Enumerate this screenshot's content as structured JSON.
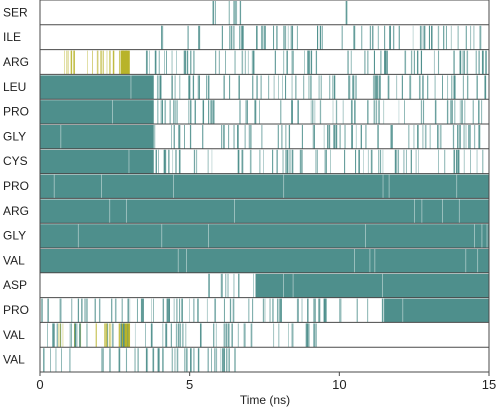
{
  "chart_data": {
    "type": "heatmap",
    "title": "",
    "xlabel": "Time (ns)",
    "ylabel": "",
    "xlim": [
      0,
      15
    ],
    "x_ticks": [
      0,
      5,
      10,
      15
    ],
    "rows": [
      {
        "label": "SER",
        "events": [
          {
            "start": 5.6,
            "end": 6.7,
            "state": "contact",
            "pattern": "sparse"
          },
          {
            "start": 10.2,
            "end": 10.3,
            "state": "contact",
            "pattern": "sparse"
          }
        ]
      },
      {
        "label": "ILE",
        "events": [
          {
            "start": 4.0,
            "end": 15.0,
            "state": "contact",
            "pattern": "sparse"
          }
        ]
      },
      {
        "label": "ARG",
        "events": [
          {
            "start": 0.3,
            "end": 2.9,
            "state": "hbond",
            "pattern": "sparse"
          },
          {
            "start": 2.7,
            "end": 3.0,
            "state": "hbond",
            "pattern": "dense"
          },
          {
            "start": 3.5,
            "end": 15.0,
            "state": "contact",
            "pattern": "sparse"
          }
        ]
      },
      {
        "label": "LEU",
        "events": [
          {
            "start": 0.0,
            "end": 3.8,
            "state": "contact",
            "pattern": "dense"
          },
          {
            "start": 3.8,
            "end": 15.0,
            "state": "contact",
            "pattern": "sparse"
          }
        ]
      },
      {
        "label": "PRO",
        "events": [
          {
            "start": 0.0,
            "end": 3.8,
            "state": "contact",
            "pattern": "dense"
          },
          {
            "start": 3.8,
            "end": 15.0,
            "state": "contact",
            "pattern": "sparse"
          }
        ]
      },
      {
        "label": "GLY",
        "events": [
          {
            "start": 0.0,
            "end": 3.8,
            "state": "contact",
            "pattern": "dense"
          },
          {
            "start": 3.8,
            "end": 15.0,
            "state": "contact",
            "pattern": "sparse"
          }
        ]
      },
      {
        "label": "CYS",
        "events": [
          {
            "start": 0.0,
            "end": 3.8,
            "state": "contact",
            "pattern": "dense"
          },
          {
            "start": 3.8,
            "end": 15.0,
            "state": "contact",
            "pattern": "sparse"
          }
        ]
      },
      {
        "label": "PRO",
        "events": [
          {
            "start": 0.0,
            "end": 15.0,
            "state": "contact",
            "pattern": "dense"
          }
        ]
      },
      {
        "label": "ARG",
        "events": [
          {
            "start": 0.0,
            "end": 15.0,
            "state": "contact",
            "pattern": "dense"
          }
        ]
      },
      {
        "label": "GLY",
        "events": [
          {
            "start": 0.0,
            "end": 15.0,
            "state": "contact",
            "pattern": "dense"
          }
        ]
      },
      {
        "label": "VAL",
        "events": [
          {
            "start": 0.0,
            "end": 15.0,
            "state": "contact",
            "pattern": "dense"
          }
        ]
      },
      {
        "label": "ASP",
        "events": [
          {
            "start": 7.2,
            "end": 15.0,
            "state": "contact",
            "pattern": "dense"
          },
          {
            "start": 5.5,
            "end": 7.2,
            "state": "contact",
            "pattern": "sparse"
          }
        ]
      },
      {
        "label": "PRO",
        "events": [
          {
            "start": 11.5,
            "end": 15.0,
            "state": "contact",
            "pattern": "dense"
          },
          {
            "start": 0.0,
            "end": 11.5,
            "state": "contact",
            "pattern": "sparse"
          }
        ]
      },
      {
        "label": "VAL",
        "events": [
          {
            "start": 0.3,
            "end": 3.0,
            "state": "hbond",
            "pattern": "sparse"
          },
          {
            "start": 2.7,
            "end": 3.0,
            "state": "hbond",
            "pattern": "dense"
          },
          {
            "start": 0.0,
            "end": 9.5,
            "state": "contact",
            "pattern": "sparse"
          }
        ]
      },
      {
        "label": "VAL",
        "events": [
          {
            "start": 0.0,
            "end": 7.0,
            "state": "contact",
            "pattern": "sparse"
          }
        ]
      }
    ],
    "colors": {
      "contact": "#4e8f8c",
      "hbond": "#b8b32a",
      "grid": "#4a4a4a",
      "background": "#ffffff"
    },
    "grid": true,
    "legend": "none"
  }
}
